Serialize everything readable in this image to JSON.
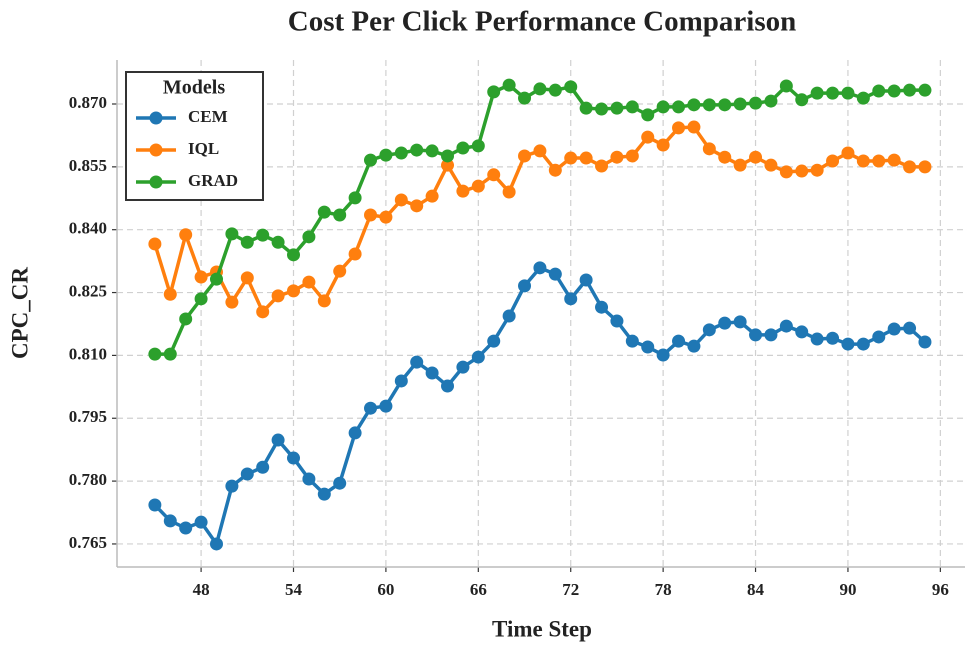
{
  "chart_data": {
    "type": "line",
    "title": "Cost Per Click Performance Comparison",
    "xlabel": "Time Step",
    "ylabel": "CPC_CR",
    "legend_title": "Models",
    "legend": "upper left",
    "grid": true,
    "x": [
      45,
      46,
      47,
      48,
      49,
      50,
      51,
      52,
      53,
      54,
      55,
      56,
      57,
      58,
      59,
      60,
      61,
      62,
      63,
      64,
      65,
      66,
      67,
      68,
      69,
      70,
      71,
      72,
      73,
      74,
      75,
      76,
      77,
      78,
      79,
      80,
      81,
      82,
      83,
      84,
      85,
      86,
      87,
      88,
      89,
      90,
      91,
      92,
      93,
      94,
      95
    ],
    "xlim": [
      42.54,
      97.6
    ],
    "xticks": [
      48,
      54,
      60,
      66,
      72,
      78,
      84,
      90,
      96
    ],
    "ylim": [
      0.7595,
      0.8805
    ],
    "yticks": [
      0.765,
      {
        "value": 0.78,
        "label": "0.780"
      },
      0.795,
      {
        "value": 0.81,
        "label": "0.810"
      },
      0.825,
      {
        "value": 0.84,
        "label": "0.840"
      },
      0.855,
      {
        "value": 0.87,
        "label": "0.870"
      }
    ],
    "series": [
      {
        "name": "CEM",
        "color": "#1f77b4",
        "values": [
          0.7743,
          0.7705,
          0.7688,
          0.7702,
          0.765,
          0.7788,
          0.7817,
          0.7833,
          0.7898,
          0.7855,
          0.7805,
          0.7769,
          0.7795,
          0.7915,
          0.7974,
          0.7979,
          0.8039,
          0.8084,
          0.8058,
          0.8027,
          0.8072,
          0.8096,
          0.8134,
          0.8194,
          0.8266,
          0.8309,
          0.8294,
          0.8235,
          0.828,
          0.8215,
          0.8182,
          0.8134,
          0.812,
          0.8101,
          0.8134,
          0.8122,
          0.8161,
          0.8177,
          0.818,
          0.8149,
          0.8149,
          0.817,
          0.8156,
          0.8139,
          0.8141,
          0.8127,
          0.8127,
          0.8144,
          0.8163,
          0.8165,
          0.8132
        ]
      },
      {
        "name": "IQL",
        "color": "#ff7f0e",
        "values": [
          0.8366,
          0.8246,
          0.8388,
          0.8287,
          0.8299,
          0.8227,
          0.8285,
          0.8204,
          0.8242,
          0.8254,
          0.8275,
          0.823,
          0.8301,
          0.8342,
          0.8435,
          0.843,
          0.8471,
          0.8457,
          0.848,
          0.8554,
          0.8492,
          0.8504,
          0.8531,
          0.849,
          0.8576,
          0.8588,
          0.8542,
          0.8571,
          0.8571,
          0.8552,
          0.8573,
          0.8576,
          0.8621,
          0.8602,
          0.8643,
          0.8645,
          0.8593,
          0.8573,
          0.8554,
          0.8573,
          0.8554,
          0.8538,
          0.854,
          0.8542,
          0.8564,
          0.8583,
          0.8564,
          0.8564,
          0.8566,
          0.855,
          0.855
        ]
      },
      {
        "name": "GRAD",
        "color": "#2ca02c",
        "values": [
          0.8103,
          0.8103,
          0.8187,
          0.8235,
          0.8282,
          0.839,
          0.837,
          0.8387,
          0.837,
          0.834,
          0.8383,
          0.8442,
          0.8435,
          0.8476,
          0.8566,
          0.8578,
          0.8583,
          0.859,
          0.8588,
          0.8576,
          0.8595,
          0.86,
          0.8729,
          0.8745,
          0.8714,
          0.8736,
          0.8733,
          0.8741,
          0.869,
          0.8688,
          0.869,
          0.8693,
          0.8674,
          0.8693,
          0.8693,
          0.8698,
          0.8698,
          0.8698,
          0.87,
          0.8702,
          0.8707,
          0.8743,
          0.871,
          0.8726,
          0.8726,
          0.8726,
          0.8714,
          0.8731,
          0.8731,
          0.8733,
          0.8733
        ]
      }
    ]
  }
}
